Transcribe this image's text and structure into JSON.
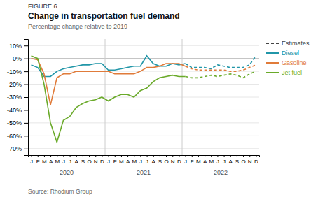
{
  "chart_data": {
    "type": "line",
    "figure_label": "FIGURE 6",
    "title": "Change in transportation fuel demand",
    "subtitle": "Percentage change relative to 2019",
    "source": "Source: Rhodium Group",
    "categories": [
      "J",
      "F",
      "M",
      "A",
      "M",
      "J",
      "J",
      "A",
      "S",
      "O",
      "N",
      "D",
      "J",
      "F",
      "M",
      "A",
      "M",
      "J",
      "J",
      "A",
      "S",
      "O",
      "N",
      "D",
      "J",
      "F",
      "M",
      "A",
      "M",
      "J",
      "J",
      "A",
      "S",
      "O",
      "N",
      "D"
    ],
    "series": [
      {
        "name": "Diesel",
        "color": "#2196a8",
        "values": [
          -5,
          -7,
          -14,
          -14,
          -10,
          -8,
          -7,
          -6,
          -5,
          -5,
          -4,
          -4,
          -9,
          -9,
          -8,
          -7,
          -6,
          -6,
          2,
          -4,
          -6,
          -6,
          -4,
          -5,
          -4,
          -7,
          -7,
          -7,
          -8,
          -5,
          -6,
          -7,
          -7,
          -7,
          -5,
          2
        ]
      },
      {
        "name": "Gasoline",
        "color": "#e07b3a",
        "values": [
          0,
          -1,
          -12,
          -36,
          -15,
          -12,
          -12,
          -10,
          -10,
          -10,
          -10,
          -10,
          -10,
          -12,
          -12,
          -12,
          -12,
          -10,
          -7,
          -7,
          -6,
          -4,
          -4,
          -4,
          -6,
          -8,
          -9,
          -9,
          -9,
          -9,
          -9,
          -10,
          -10,
          -9,
          -7,
          -5
        ]
      },
      {
        "name": "Jet fuel",
        "color": "#6aaa2a",
        "values": [
          2,
          0,
          -20,
          -50,
          -65,
          -48,
          -45,
          -38,
          -35,
          -33,
          -32,
          -30,
          -33,
          -30,
          -28,
          -28,
          -30,
          -25,
          -23,
          -18,
          -15,
          -14,
          -13,
          -14,
          -14,
          -15,
          -15,
          -14,
          -13,
          -14,
          -13,
          -12,
          -13,
          -15,
          -12,
          -10
        ]
      }
    ],
    "annotations": [
      {
        "text": "2020",
        "start": 0
      },
      {
        "text": "2021",
        "start": 12
      },
      {
        "text": "2022",
        "start": 24
      },
      {
        "text": "Estimates",
        "start": 24,
        "line_style": "dashed"
      }
    ],
    "ylim": [
      -75,
      15
    ],
    "yticks": [
      {
        "value": 10,
        "label": "10%"
      },
      {
        "value": 0,
        "label": "0%"
      },
      {
        "value": -10,
        "label": "-10%"
      },
      {
        "value": -20,
        "label": "-20%"
      },
      {
        "value": -30,
        "label": "-30%"
      },
      {
        "value": -40,
        "label": "-40%"
      },
      {
        "value": -50,
        "label": "-50%"
      },
      {
        "value": -60,
        "label": "-60%"
      },
      {
        "value": -70,
        "label": "-70%"
      }
    ],
    "grid": true,
    "legend": "right"
  }
}
